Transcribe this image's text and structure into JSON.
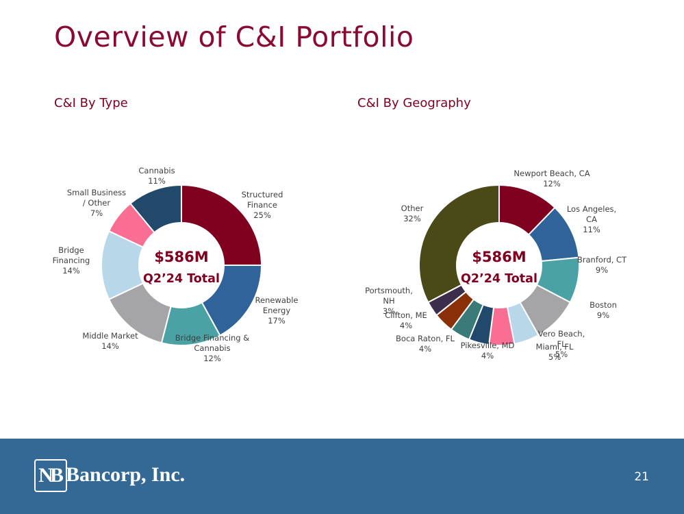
{
  "title": "Overview of C&I Portfolio",
  "page_number": "21",
  "footer": {
    "logo_mark": "NB",
    "logo_text": "Bancorp, Inc."
  },
  "chart_data": [
    {
      "type": "pie",
      "title": "C&I By Type",
      "center_value": "$586M",
      "center_label": "Q2’24 Total",
      "slices": [
        {
          "lines": [
            "Structured",
            "Finance"
          ],
          "pct_label": "25%",
          "value": 25,
          "color": "#800020"
        },
        {
          "lines": [
            "Renewable",
            "Energy"
          ],
          "pct_label": "17%",
          "value": 17,
          "color": "#2f6399"
        },
        {
          "lines": [
            "Bridge Financing &",
            "Cannabis"
          ],
          "pct_label": "12%",
          "value": 12,
          "color": "#4ba2a5"
        },
        {
          "lines": [
            "Middle Market"
          ],
          "pct_label": "14%",
          "value": 14,
          "color": "#a5a5a7"
        },
        {
          "lines": [
            "Bridge",
            "Financing"
          ],
          "pct_label": "14%",
          "value": 14,
          "color": "#b8d8ea"
        },
        {
          "lines": [
            "Small Business",
            "/ Other"
          ],
          "pct_label": "7%",
          "value": 7,
          "color": "#fa6e94"
        },
        {
          "lines": [
            "Cannabis"
          ],
          "pct_label": "11%",
          "value": 11,
          "color": "#21496b"
        }
      ]
    },
    {
      "type": "pie",
      "title": "C&I By Geography",
      "center_value": "$586M",
      "center_label": "Q2’24 Total",
      "slices": [
        {
          "lines": [
            "Newport Beach, CA"
          ],
          "pct_label": "12%",
          "value": 12,
          "color": "#800020"
        },
        {
          "lines": [
            "Los Angeles,",
            "CA"
          ],
          "pct_label": "11%",
          "value": 11,
          "color": "#2f6399"
        },
        {
          "lines": [
            "Branford, CT"
          ],
          "pct_label": "9%",
          "value": 9,
          "color": "#4ba2a5"
        },
        {
          "lines": [
            "Boston"
          ],
          "pct_label": "9%",
          "value": 9,
          "color": "#a5a5a7"
        },
        {
          "lines": [
            "Vero Beach,",
            "FL"
          ],
          "pct_label": "5%",
          "value": 5,
          "color": "#b8d8ea"
        },
        {
          "lines": [
            "Miami, FL"
          ],
          "pct_label": "5%",
          "value": 5,
          "color": "#fa6e94"
        },
        {
          "lines": [
            "Pikesville, MD"
          ],
          "pct_label": "4%",
          "value": 4,
          "color": "#21496b"
        },
        {
          "lines": [
            "Boca Raton, FL"
          ],
          "pct_label": "4%",
          "value": 4,
          "color": "#3a7a78"
        },
        {
          "lines": [
            "Clifton, ME"
          ],
          "pct_label": "4%",
          "value": 4,
          "color": "#8a3008"
        },
        {
          "lines": [
            "Portsmouth,",
            "NH"
          ],
          "pct_label": "3%",
          "value": 3,
          "color": "#3c2d4d"
        },
        {
          "lines": [
            "Other"
          ],
          "pct_label": "32%",
          "value": 32,
          "color": "#4a4a18"
        }
      ]
    }
  ]
}
